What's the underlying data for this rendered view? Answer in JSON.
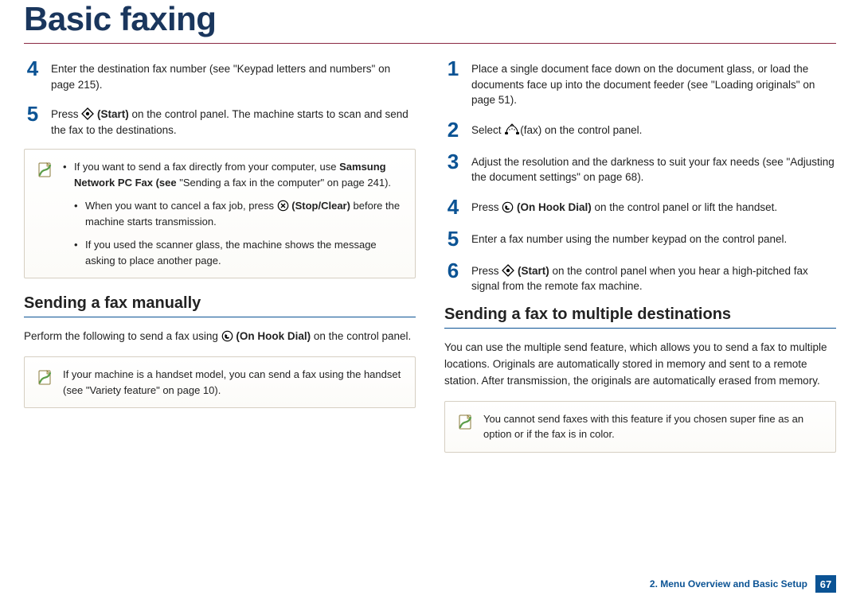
{
  "title": "Basic faxing",
  "left": {
    "steps": [
      {
        "num": "4",
        "text": "Enter the destination fax number (see \"Keypad letters and numbers\" on page 215)."
      },
      {
        "num": "5",
        "pre": "Press ",
        "icon": "start",
        "bold": "(Start)",
        "post": " on the control panel. The machine starts to scan and send the fax to the destinations."
      }
    ],
    "note1": {
      "items": [
        {
          "pre": "If you want to send a fax directly from your computer, use ",
          "bold": "Samsung Network PC Fax (see",
          "post": " \"Sending a fax in the computer\" on page 241)."
        },
        {
          "pre": "When you want to cancel a fax job, press ",
          "icon": "stop",
          "bold": "(Stop/Clear)",
          "post": " before the machine starts transmission.",
          "sub": true
        },
        {
          "text": "If you used the scanner glass, the machine shows the message asking to place another page.",
          "sub": true
        }
      ]
    },
    "subheading": "Sending a fax manually",
    "para_pre": "Perform the following to send a fax using ",
    "para_bold": "(On Hook Dial)",
    "para_post": " on the control panel.",
    "note2": "If your machine is a handset model, you can send a fax using the handset (see \"Variety feature\" on page 10)."
  },
  "right": {
    "steps": [
      {
        "num": "1",
        "text": "Place a single document face down on the document glass, or load the documents face up into the document feeder (see \"Loading originals\" on page 51)."
      },
      {
        "num": "2",
        "pre": "Select ",
        "icon": "fax",
        "post": "(fax) on the control panel."
      },
      {
        "num": "3",
        "text": "Adjust the resolution and the darkness to suit your fax needs (see \"Adjusting the document settings\" on page 68)."
      },
      {
        "num": "4",
        "pre": "Press ",
        "icon": "hook",
        "bold": "(On Hook Dial)",
        "post": " on the control panel or lift the handset."
      },
      {
        "num": "5",
        "text": "Enter a fax number using the number keypad on the control panel."
      },
      {
        "num": "6",
        "pre": "Press ",
        "icon": "start",
        "bold": "(Start)",
        "post": " on the control panel when you hear a high-pitched fax signal from the remote fax machine."
      }
    ],
    "subheading": "Sending a fax to multiple destinations",
    "para": "You can use the multiple send feature, which allows you to send a fax to multiple locations. Originals are automatically stored in memory and sent to a remote station. After transmission, the originals are automatically erased from memory.",
    "note": "You cannot send faxes with this feature if you chosen super fine as an option or if the fax is in color."
  },
  "footer": {
    "section": "2. Menu Overview and Basic Setup",
    "page": "67"
  },
  "icons": {
    "note": "<svg width='24' height='24' viewBox='0 0 24 24'><rect x='4' y='3' width='14' height='17' rx='1' fill='#fff' stroke='#8a7a3a' stroke-width='1'/><path d='M14 3 L18 7 L14 7 Z' fill='#e8dfa8' stroke='#8a7a3a' stroke-width='0.8'/><path d='M5 18 C9 8 14 15 18 6' stroke='#5c9e4a' stroke-width='2.2' fill='none' stroke-linecap='round'/></svg>",
    "start": "<svg class='inline-icon' width='16' height='16' viewBox='0 0 16 16'><path d='M8 1 L15 8 L8 15 L1 8 Z' fill='#fff' stroke='#000' stroke-width='1.3'/><circle cx='8' cy='8' r='2.2' fill='#000'/></svg>",
    "stop": "<svg class='inline-icon' width='15' height='15' viewBox='0 0 15 15'><circle cx='7.5' cy='7.5' r='6.2' fill='#fff' stroke='#000' stroke-width='1.2'/><path d='M5 5 L10 10 M10 5 L5 10' stroke='#000' stroke-width='1.4'/></svg>",
    "hook": "<svg class='inline-icon' width='15' height='15' viewBox='0 0 15 15'><circle cx='7.5' cy='7.5' r='6.2' fill='#fff' stroke='#000' stroke-width='1.2'/><path d='M5 5 C4 7 4 8 5 10 C7 11 8 11 10 10 L9 8.5 C8 9 7 9 6.5 8 L7.5 6.5 Z' fill='#000'/></svg>",
    "fax": "<svg class='inline-icon' width='20' height='16' viewBox='0 0 20 16'><path d='M3 12 C3 6 8 3 10 3 C12 3 17 6 17 12' fill='none' stroke='#000' stroke-width='1.1'/><rect x='1' y='11' width='4' height='3' rx='1' fill='#000'/><rect x='15' y='11' width='4' height='3' rx='1' fill='#000'/><path d='M8 3 L10 1 L12 3' fill='none' stroke='#000' stroke-width='1'/><circle cx='7' cy='8' r='0.7' fill='#000'/><circle cx='10' cy='7' r='0.7' fill='#000'/><circle cx='13' cy='8' r='0.7' fill='#000'/></svg>"
  }
}
